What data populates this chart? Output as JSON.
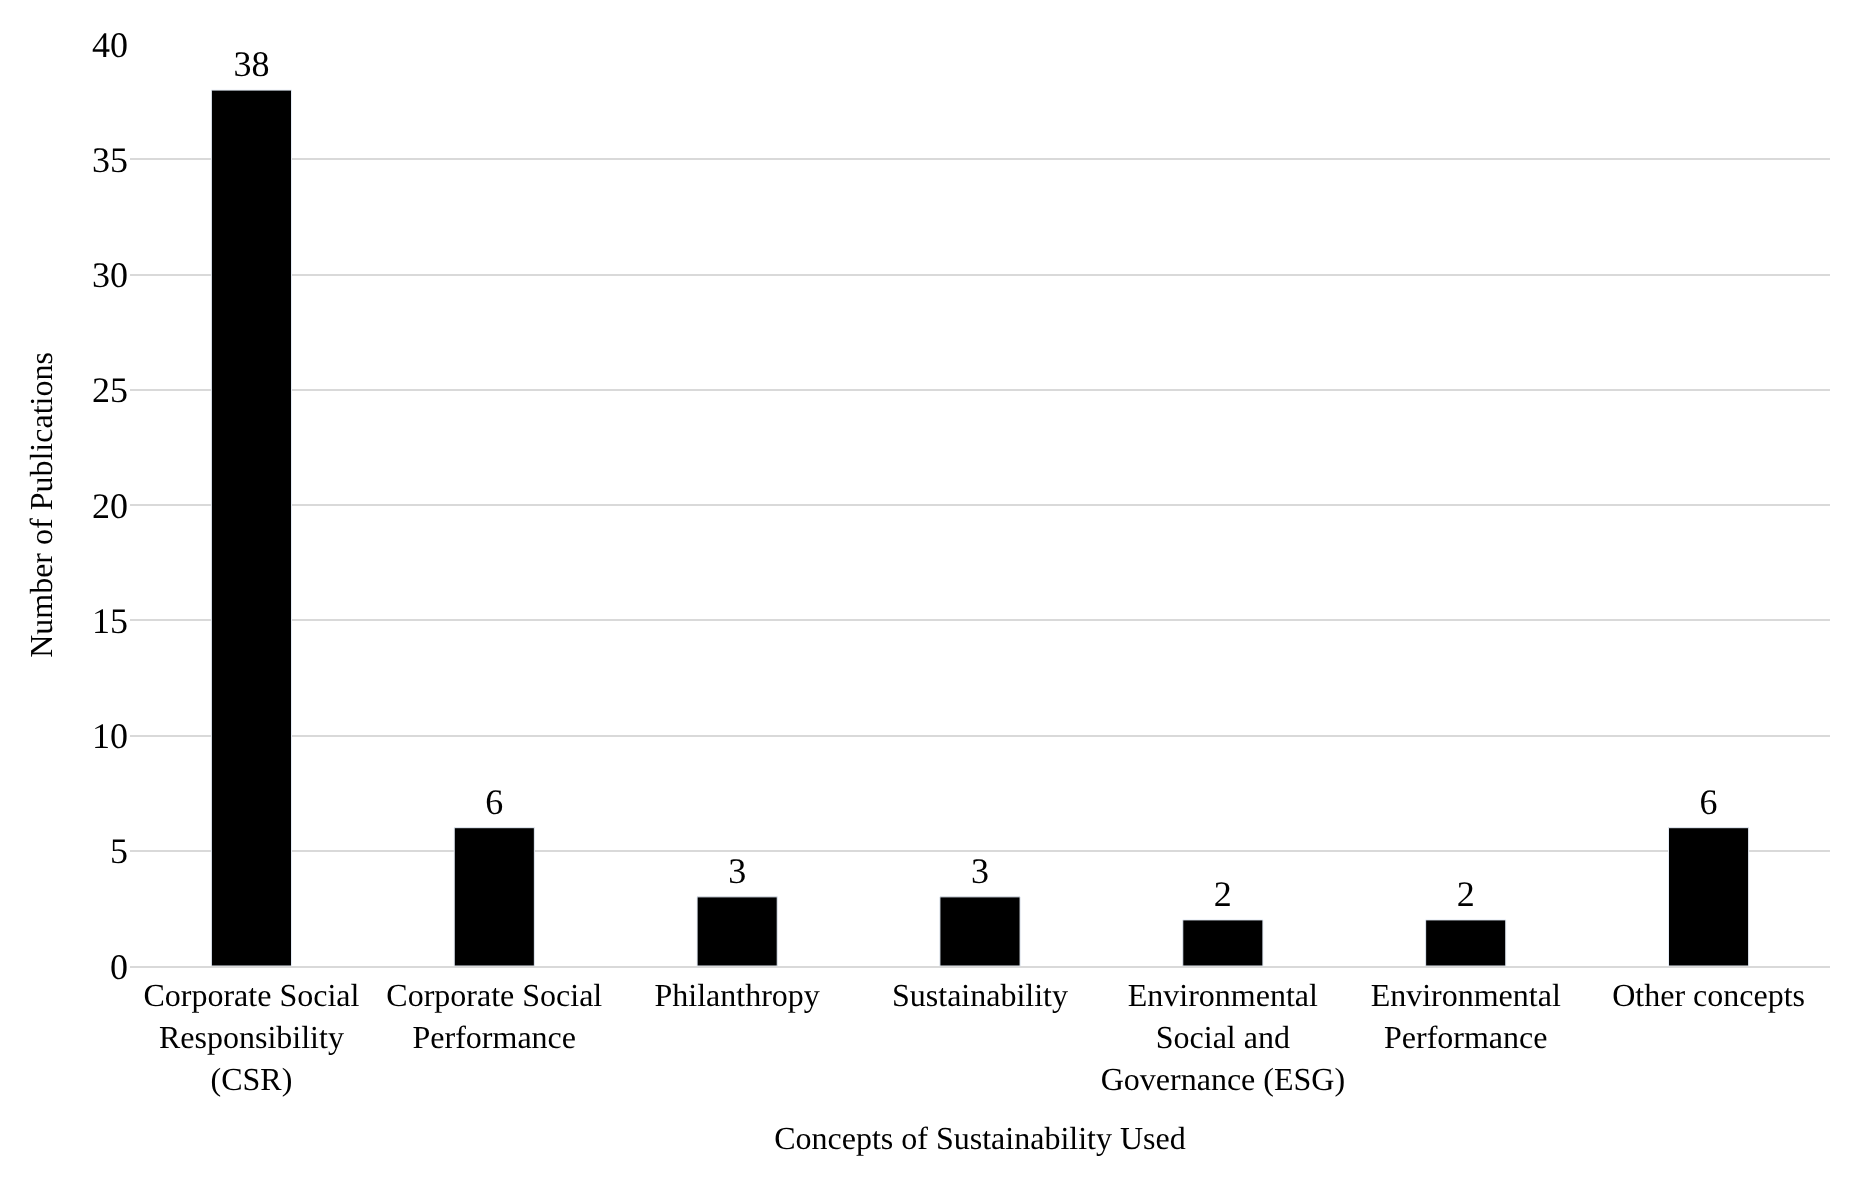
{
  "chart_data": {
    "type": "bar",
    "xlabel": "Concepts of Sustainability Used",
    "ylabel": "Number of Publications",
    "categories": [
      "Corporate Social Responsibility (CSR)",
      "Corporate Social Performance",
      "Philanthropy",
      "Sustainability",
      "Environmental Social and Governance (ESG)",
      "Environmental Performance",
      "Other concepts"
    ],
    "values": [
      38,
      6,
      3,
      3,
      2,
      2,
      6
    ],
    "color": "#000000",
    "ylim": [
      0,
      40
    ],
    "yticks": [
      0,
      5,
      10,
      15,
      20,
      25,
      30,
      35,
      40
    ],
    "grid": "y",
    "data_labels": true,
    "legend": false
  }
}
